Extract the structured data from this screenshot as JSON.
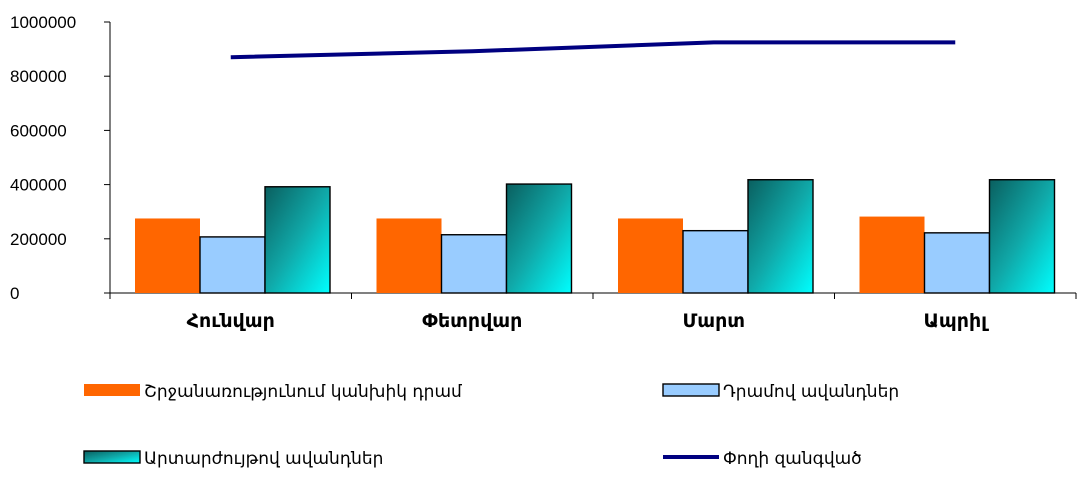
{
  "chart_data": {
    "type": "bar",
    "categories": [
      "Հունվար",
      "Փետրվար",
      "Մարտ",
      "Ապրիլ"
    ],
    "series": [
      {
        "name": "Շրջանառությունում կանխիկ դրամ",
        "type": "bar",
        "color": "#ff6600",
        "values": [
          275000,
          275000,
          275000,
          282000
        ]
      },
      {
        "name": "Դրամով ավանդներ",
        "type": "bar",
        "color": "#99ccff",
        "values": [
          207000,
          215000,
          230000,
          222000
        ]
      },
      {
        "name": "Արտարժույթով ավանդներ",
        "type": "bar",
        "color": "#0e9c9c",
        "values": [
          392000,
          402000,
          418000,
          418000
        ]
      },
      {
        "name": "Փողի զանգված",
        "type": "line",
        "color": "#000080",
        "values": [
          870000,
          892000,
          925000,
          925000
        ]
      }
    ],
    "y_ticks": [
      "0",
      "200000",
      "400000",
      "600000",
      "800000",
      "1000000"
    ],
    "ylim": [
      0,
      1000000
    ],
    "grid": false,
    "legend_position": "bottom"
  }
}
